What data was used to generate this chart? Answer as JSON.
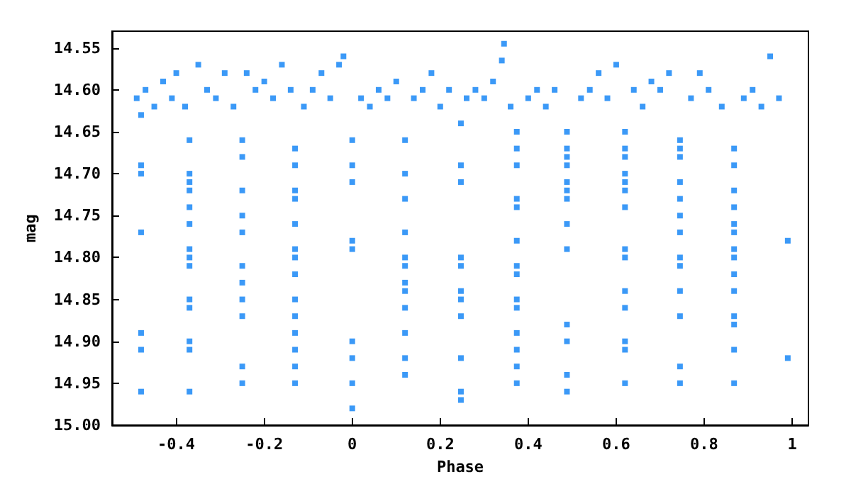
{
  "chart_data": {
    "type": "scatter",
    "xlabel": "Phase",
    "ylabel": "mag",
    "marker": "square",
    "grid": false,
    "xlim": [
      -0.546,
      1.037
    ],
    "xticks": [
      -0.4,
      -0.2,
      0,
      0.2,
      0.4,
      0.6,
      0.8,
      1
    ],
    "ylim": [
      15.0,
      14.53
    ],
    "yticks": [
      {
        "value": 14.55,
        "label": "14.55"
      },
      {
        "value": 14.6,
        "label": "14.60"
      },
      {
        "value": 14.65,
        "label": "14.65"
      },
      {
        "value": 14.7,
        "label": "14.70"
      },
      {
        "value": 14.75,
        "label": "14.75"
      },
      {
        "value": 14.8,
        "label": "14.80"
      },
      {
        "value": 14.85,
        "label": "14.85"
      },
      {
        "value": 14.9,
        "label": "14.90"
      },
      {
        "value": 14.95,
        "label": "14.95"
      },
      {
        "value": 15.0,
        "label": "15.00"
      }
    ],
    "series": [
      {
        "color": "#0a7ff5",
        "x": [
          -0.49,
          -0.47,
          -0.45,
          -0.43,
          -0.41,
          -0.4,
          -0.38,
          -0.35,
          -0.33,
          -0.31,
          -0.29,
          -0.27,
          -0.24,
          -0.22,
          -0.2,
          -0.18,
          -0.16,
          -0.14,
          -0.11,
          -0.09,
          -0.07,
          -0.05,
          -0.03,
          -0.02,
          0.02,
          0.04,
          0.06,
          0.08,
          0.1,
          0.14,
          0.16,
          0.18,
          0.2,
          0.22,
          0.26,
          0.28,
          0.3,
          0.32,
          0.345,
          0.34,
          0.36,
          0.4,
          0.42,
          0.44,
          0.46,
          0.52,
          0.54,
          0.56,
          0.58,
          0.6,
          0.64,
          0.66,
          0.68,
          0.7,
          0.72,
          0.77,
          0.79,
          0.81,
          0.84,
          0.89,
          0.91,
          0.93,
          0.95,
          0.97,
          -0.48,
          -0.48,
          -0.48,
          -0.48,
          -0.48,
          -0.48,
          -0.48,
          -0.37,
          -0.37,
          -0.37,
          -0.37,
          -0.37,
          -0.37,
          -0.37,
          -0.37,
          -0.37,
          -0.37,
          -0.37,
          -0.37,
          -0.37,
          -0.37,
          -0.25,
          -0.25,
          -0.25,
          -0.25,
          -0.25,
          -0.25,
          -0.25,
          -0.25,
          -0.25,
          -0.25,
          -0.25,
          -0.13,
          -0.13,
          -0.13,
          -0.13,
          -0.13,
          -0.13,
          -0.13,
          -0.13,
          -0.13,
          -0.13,
          -0.13,
          -0.13,
          -0.13,
          -0.13,
          0,
          0,
          0,
          0,
          0,
          0,
          0,
          0,
          0,
          0.12,
          0.12,
          0.12,
          0.12,
          0.12,
          0.12,
          0.12,
          0.12,
          0.12,
          0.12,
          0.12,
          0.12,
          0.247,
          0.247,
          0.247,
          0.247,
          0.247,
          0.247,
          0.247,
          0.247,
          0.247,
          0.247,
          0.247,
          0.374,
          0.374,
          0.374,
          0.374,
          0.374,
          0.374,
          0.374,
          0.374,
          0.374,
          0.374,
          0.374,
          0.374,
          0.374,
          0.374,
          0.488,
          0.488,
          0.488,
          0.488,
          0.488,
          0.488,
          0.488,
          0.488,
          0.488,
          0.488,
          0.488,
          0.488,
          0.488,
          0.62,
          0.62,
          0.62,
          0.62,
          0.62,
          0.62,
          0.62,
          0.62,
          0.62,
          0.62,
          0.62,
          0.62,
          0.62,
          0.62,
          0.745,
          0.745,
          0.745,
          0.745,
          0.745,
          0.745,
          0.745,
          0.745,
          0.745,
          0.745,
          0.745,
          0.745,
          0.745,
          0.868,
          0.868,
          0.868,
          0.868,
          0.868,
          0.868,
          0.868,
          0.868,
          0.868,
          0.868,
          0.868,
          0.868,
          0.868,
          0.868,
          0.99,
          0.99
        ],
        "values": [
          14.61,
          14.6,
          14.62,
          14.59,
          14.61,
          14.58,
          14.62,
          14.57,
          14.6,
          14.61,
          14.58,
          14.62,
          14.58,
          14.6,
          14.59,
          14.61,
          14.57,
          14.6,
          14.62,
          14.6,
          14.58,
          14.61,
          14.57,
          14.56,
          14.61,
          14.62,
          14.6,
          14.61,
          14.59,
          14.61,
          14.6,
          14.58,
          14.62,
          14.6,
          14.61,
          14.6,
          14.61,
          14.59,
          14.545,
          14.565,
          14.62,
          14.61,
          14.6,
          14.62,
          14.6,
          14.61,
          14.6,
          14.58,
          14.61,
          14.57,
          14.6,
          14.62,
          14.59,
          14.6,
          14.58,
          14.61,
          14.58,
          14.6,
          14.62,
          14.61,
          14.6,
          14.62,
          14.56,
          14.61,
          14.63,
          14.69,
          14.7,
          14.77,
          14.89,
          14.91,
          14.96,
          14.66,
          14.7,
          14.71,
          14.72,
          14.74,
          14.76,
          14.79,
          14.8,
          14.81,
          14.85,
          14.86,
          14.9,
          14.91,
          14.96,
          14.66,
          14.68,
          14.72,
          14.75,
          14.77,
          14.81,
          14.83,
          14.85,
          14.87,
          14.93,
          14.95,
          14.67,
          14.69,
          14.72,
          14.73,
          14.76,
          14.79,
          14.8,
          14.82,
          14.85,
          14.87,
          14.89,
          14.91,
          14.93,
          14.95,
          14.66,
          14.69,
          14.71,
          14.78,
          14.79,
          14.9,
          14.92,
          14.95,
          14.98,
          14.66,
          14.7,
          14.73,
          14.77,
          14.8,
          14.81,
          14.83,
          14.84,
          14.86,
          14.89,
          14.92,
          14.94,
          14.64,
          14.69,
          14.71,
          14.8,
          14.81,
          14.84,
          14.85,
          14.87,
          14.92,
          14.96,
          14.97,
          14.65,
          14.67,
          14.69,
          14.73,
          14.74,
          14.78,
          14.81,
          14.82,
          14.85,
          14.86,
          14.89,
          14.91,
          14.93,
          14.95,
          14.65,
          14.67,
          14.68,
          14.69,
          14.71,
          14.72,
          14.73,
          14.76,
          14.79,
          14.88,
          14.9,
          14.94,
          14.96,
          14.65,
          14.67,
          14.68,
          14.7,
          14.71,
          14.72,
          14.74,
          14.79,
          14.8,
          14.84,
          14.86,
          14.9,
          14.91,
          14.95,
          14.66,
          14.67,
          14.68,
          14.71,
          14.73,
          14.75,
          14.77,
          14.8,
          14.81,
          14.84,
          14.87,
          14.93,
          14.95,
          14.67,
          14.69,
          14.72,
          14.74,
          14.76,
          14.77,
          14.79,
          14.8,
          14.82,
          14.84,
          14.87,
          14.88,
          14.91,
          14.95,
          14.78,
          14.92
        ]
      }
    ]
  }
}
